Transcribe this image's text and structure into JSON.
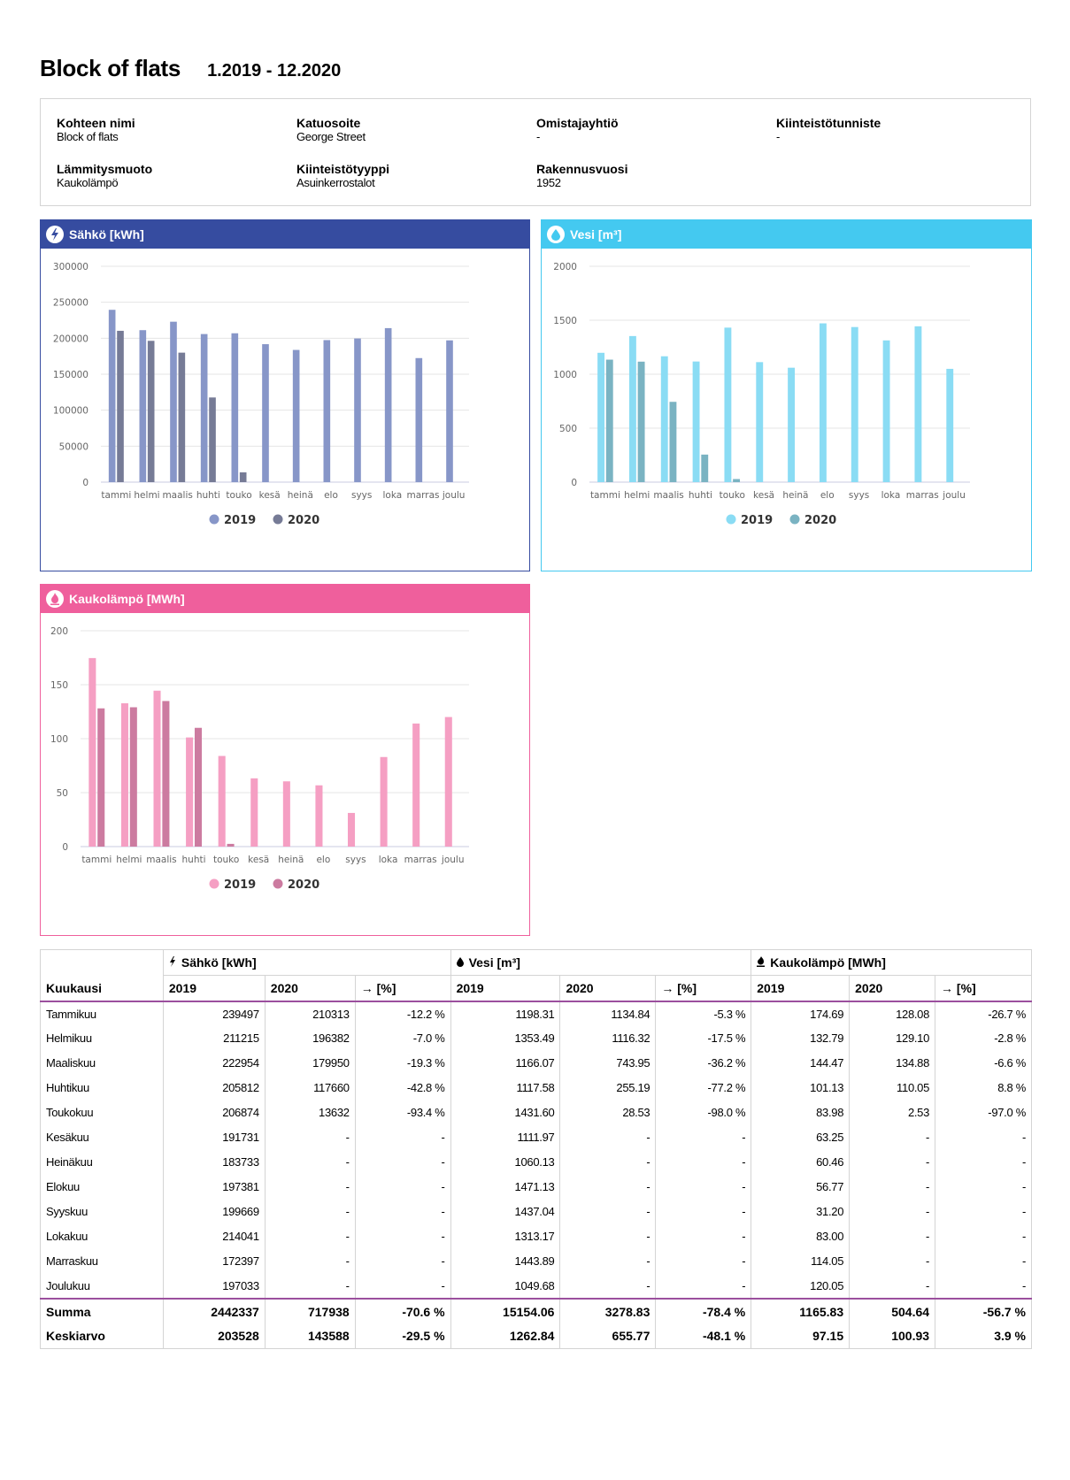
{
  "header": {
    "title": "Block of flats",
    "period": "1.2019 - 12.2020"
  },
  "info": {
    "items": [
      {
        "label": "Kohteen nimi",
        "value": "Block of flats"
      },
      {
        "label": "Katuosoite",
        "value": "George Street"
      },
      {
        "label": "Omistajayhtiö",
        "value": "-"
      },
      {
        "label": "Kiinteistötunniste",
        "value": "-"
      },
      {
        "label": "Lämmitysmuoto",
        "value": "Kaukolämpö"
      },
      {
        "label": "Kiinteistötyyppi",
        "value": "Asuinkerrostalot"
      },
      {
        "label": "Rakennusvuosi",
        "value": "1952"
      }
    ]
  },
  "colors": {
    "electricity_header": "#364ca0",
    "electricity_2019": "#8796c8",
    "electricity_2020": "#767b96",
    "water_header": "#44c9f0",
    "water_2019": "#8adcf4",
    "water_2020": "#7ab3c2",
    "heat_header": "#ef5f9c",
    "heat_2019": "#f59fc3",
    "heat_2020": "#cc7ba0",
    "table_rule": "#9b4f9e"
  },
  "chart_data": [
    {
      "id": "electricity",
      "type": "bar",
      "title": "Sähkö [kWh]",
      "icon": "lightning-icon",
      "categories": [
        "tammi",
        "helmi",
        "maalis",
        "huhti",
        "touko",
        "kesä",
        "heinä",
        "elo",
        "syys",
        "loka",
        "marras",
        "joulu"
      ],
      "series": [
        {
          "name": "2019",
          "values": [
            239497,
            211215,
            222954,
            205812,
            206874,
            191731,
            183733,
            197381,
            199669,
            214041,
            172397,
            197033
          ]
        },
        {
          "name": "2020",
          "values": [
            210313,
            196382,
            179950,
            117660,
            13632,
            null,
            null,
            null,
            null,
            null,
            null,
            null
          ]
        }
      ],
      "yticks": [
        "0",
        "50000",
        "100000",
        "150000",
        "200000",
        "250000",
        "300000"
      ],
      "ylim": [
        0,
        300000
      ],
      "grid": true,
      "legend": "bottom-center"
    },
    {
      "id": "water",
      "type": "bar",
      "title": "Vesi [m³]",
      "icon": "water-drop-icon",
      "categories": [
        "tammi",
        "helmi",
        "maalis",
        "huhti",
        "touko",
        "kesä",
        "heinä",
        "elo",
        "syys",
        "loka",
        "marras",
        "joulu"
      ],
      "series": [
        {
          "name": "2019",
          "values": [
            1198.31,
            1353.49,
            1166.07,
            1117.58,
            1431.6,
            1111.97,
            1060.13,
            1471.13,
            1437.04,
            1313.17,
            1443.89,
            1049.68
          ]
        },
        {
          "name": "2020",
          "values": [
            1134.84,
            1116.32,
            743.95,
            255.19,
            28.53,
            null,
            null,
            null,
            null,
            null,
            null,
            null
          ]
        }
      ],
      "yticks": [
        "0",
        "500",
        "1000",
        "1500",
        "2000"
      ],
      "ylim": [
        0,
        2000
      ],
      "grid": true,
      "legend": "bottom-center"
    },
    {
      "id": "heat",
      "type": "bar",
      "title": "Kaukolämpö [MWh]",
      "icon": "flame-icon",
      "categories": [
        "tammi",
        "helmi",
        "maalis",
        "huhti",
        "touko",
        "kesä",
        "heinä",
        "elo",
        "syys",
        "loka",
        "marras",
        "joulu"
      ],
      "series": [
        {
          "name": "2019",
          "values": [
            174.69,
            132.79,
            144.47,
            101.13,
            83.98,
            63.25,
            60.46,
            56.77,
            31.2,
            83.0,
            114.05,
            120.05
          ]
        },
        {
          "name": "2020",
          "values": [
            128.08,
            129.1,
            134.88,
            110.05,
            2.53,
            null,
            null,
            null,
            null,
            null,
            null,
            null
          ]
        }
      ],
      "yticks": [
        "0",
        "50",
        "100",
        "150",
        "200"
      ],
      "ylim": [
        0,
        200
      ],
      "grid": true,
      "legend": "bottom-center"
    }
  ],
  "table": {
    "month_header": "Kuukausi",
    "groups": [
      {
        "label": "Sähkö [kWh]",
        "icon": "lightning-icon",
        "glyph": "ϟ"
      },
      {
        "label": "Vesi [m³]",
        "icon": "water-drop-icon",
        "glyph": "💧"
      },
      {
        "label": "Kaukolämpö [MWh]",
        "icon": "flame-icon",
        "glyph": "🔥"
      }
    ],
    "sub_headers": [
      "2019",
      "2020",
      "→ [%]"
    ],
    "rows": [
      {
        "month": "Tammikuu",
        "cells": [
          "239497",
          "210313",
          "-12.2 %",
          "1198.31",
          "1134.84",
          "-5.3 %",
          "174.69",
          "128.08",
          "-26.7 %"
        ]
      },
      {
        "month": "Helmikuu",
        "cells": [
          "211215",
          "196382",
          "-7.0 %",
          "1353.49",
          "1116.32",
          "-17.5 %",
          "132.79",
          "129.10",
          "-2.8 %"
        ]
      },
      {
        "month": "Maaliskuu",
        "cells": [
          "222954",
          "179950",
          "-19.3 %",
          "1166.07",
          "743.95",
          "-36.2 %",
          "144.47",
          "134.88",
          "-6.6 %"
        ]
      },
      {
        "month": "Huhtikuu",
        "cells": [
          "205812",
          "117660",
          "-42.8 %",
          "1117.58",
          "255.19",
          "-77.2 %",
          "101.13",
          "110.05",
          "8.8 %"
        ]
      },
      {
        "month": "Toukokuu",
        "cells": [
          "206874",
          "13632",
          "-93.4 %",
          "1431.60",
          "28.53",
          "-98.0 %",
          "83.98",
          "2.53",
          "-97.0 %"
        ]
      },
      {
        "month": "Kesäkuu",
        "cells": [
          "191731",
          "-",
          "-",
          "1111.97",
          "-",
          "-",
          "63.25",
          "-",
          "-"
        ]
      },
      {
        "month": "Heinäkuu",
        "cells": [
          "183733",
          "-",
          "-",
          "1060.13",
          "-",
          "-",
          "60.46",
          "-",
          "-"
        ]
      },
      {
        "month": "Elokuu",
        "cells": [
          "197381",
          "-",
          "-",
          "1471.13",
          "-",
          "-",
          "56.77",
          "-",
          "-"
        ]
      },
      {
        "month": "Syyskuu",
        "cells": [
          "199669",
          "-",
          "-",
          "1437.04",
          "-",
          "-",
          "31.20",
          "-",
          "-"
        ]
      },
      {
        "month": "Lokakuu",
        "cells": [
          "214041",
          "-",
          "-",
          "1313.17",
          "-",
          "-",
          "83.00",
          "-",
          "-"
        ]
      },
      {
        "month": "Marraskuu",
        "cells": [
          "172397",
          "-",
          "-",
          "1443.89",
          "-",
          "-",
          "114.05",
          "-",
          "-"
        ]
      },
      {
        "month": "Joulukuu",
        "cells": [
          "197033",
          "-",
          "-",
          "1049.68",
          "-",
          "-",
          "120.05",
          "-",
          "-"
        ]
      }
    ],
    "sum": {
      "label": "Summa",
      "cells": [
        "2442337",
        "717938",
        "-70.6 %",
        "15154.06",
        "3278.83",
        "-78.4 %",
        "1165.83",
        "504.64",
        "-56.7 %"
      ]
    },
    "avg": {
      "label": "Keskiarvo",
      "cells": [
        "203528",
        "143588",
        "-29.5 %",
        "1262.84",
        "655.77",
        "-48.1 %",
        "97.15",
        "100.93",
        "3.9 %"
      ]
    }
  }
}
